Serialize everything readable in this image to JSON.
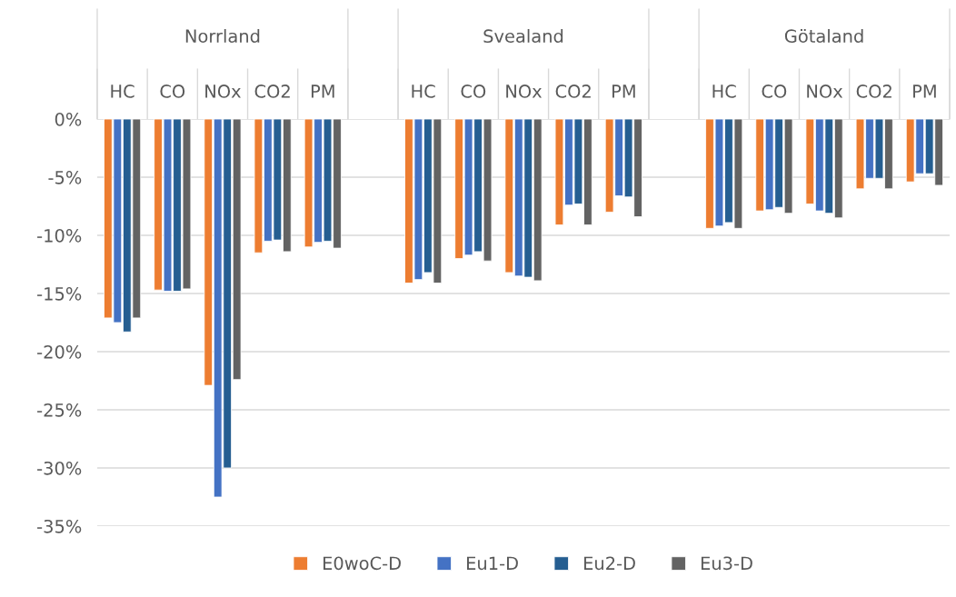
{
  "chart_data": {
    "type": "bar",
    "categories": [
      "HC",
      "CO",
      "NOx",
      "CO2",
      "PM",
      null,
      "HC",
      "CO",
      "NOx",
      "CO2",
      "PM",
      null,
      "HC",
      "CO",
      "NOx",
      "CO2",
      "PM"
    ],
    "series": [
      {
        "name": "E0woC-D",
        "color": "#ed7d31",
        "values": [
          -17.1,
          -14.7,
          -22.9,
          -11.5,
          -11.0,
          null,
          -14.1,
          -12.0,
          -13.2,
          -9.1,
          -8.0,
          null,
          -9.4,
          -7.9,
          -7.3,
          -6.0,
          -5.4
        ]
      },
      {
        "name": "Eu1-D",
        "color": "#4472c4",
        "values": [
          -17.5,
          -14.8,
          -32.5,
          -10.5,
          -10.6,
          null,
          -13.8,
          -11.7,
          -13.5,
          -7.4,
          -6.6,
          null,
          -9.2,
          -7.8,
          -7.9,
          -5.1,
          -4.7
        ]
      },
      {
        "name": "Eu2-D",
        "color": "#255e91",
        "values": [
          -18.3,
          -14.8,
          -30.0,
          -10.4,
          -10.5,
          null,
          -13.2,
          -11.4,
          -13.6,
          -7.3,
          -6.7,
          null,
          -8.9,
          -7.6,
          -8.1,
          -5.1,
          -4.7
        ]
      },
      {
        "name": "Eu3-D",
        "color": "#636363",
        "values": [
          -17.1,
          -14.6,
          -22.4,
          -11.4,
          -11.1,
          null,
          -14.1,
          -12.2,
          -13.9,
          -9.1,
          -8.4,
          null,
          -9.4,
          -8.1,
          -8.5,
          -6.0,
          -5.7
        ]
      }
    ],
    "annotations": [
      "Norrland",
      "Svealand",
      "Götaland"
    ],
    "ylim": [
      -35,
      0
    ],
    "yticks": [
      {
        "value": 0,
        "label": "0%"
      },
      {
        "value": -5,
        "label": "-5%"
      },
      {
        "value": -10,
        "label": "-10%"
      },
      {
        "value": -15,
        "label": "-15%"
      },
      {
        "value": -20,
        "label": "-20%"
      },
      {
        "value": -25,
        "label": "-25%"
      },
      {
        "value": -30,
        "label": "-30%"
      },
      {
        "value": -35,
        "label": "-35%"
      }
    ],
    "grid": "y",
    "legend": "bottom"
  }
}
